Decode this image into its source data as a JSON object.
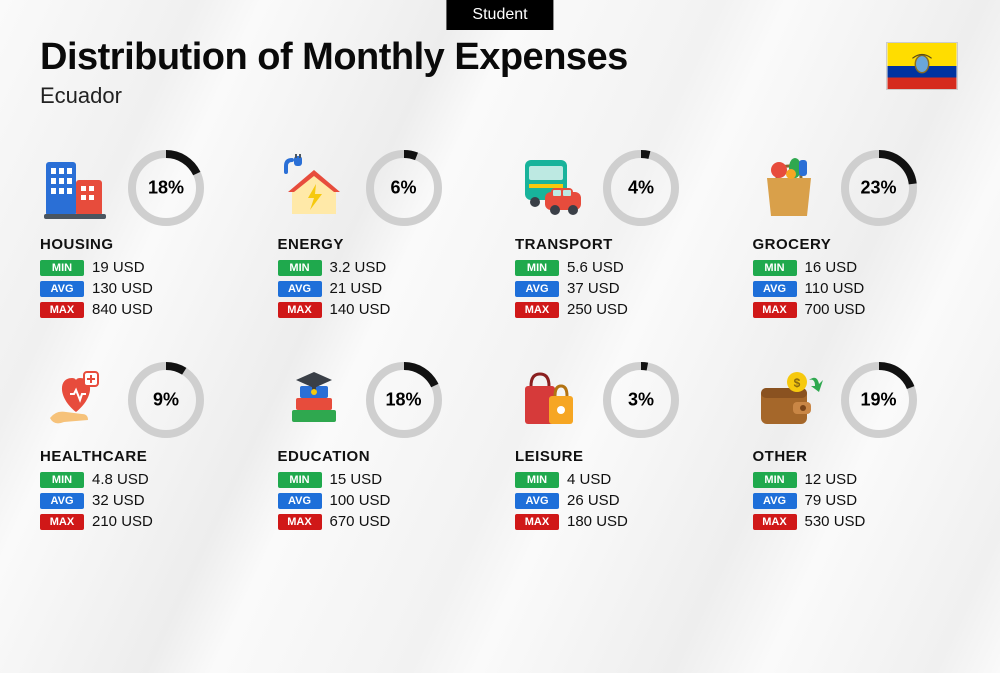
{
  "tag": "Student",
  "title": "Distribution of Monthly Expenses",
  "country": "Ecuador",
  "flag": {
    "stripes": [
      {
        "color": "#ffdd00",
        "height": 24
      },
      {
        "color": "#0033a0",
        "height": 12
      },
      {
        "color": "#d52b1e",
        "height": 12
      }
    ]
  },
  "labels": {
    "min": "MIN",
    "avg": "AVG",
    "max": "MAX"
  },
  "donut": {
    "ring_bg": "#cfcfcf",
    "ring_fg": "#111111",
    "ring_width": 8,
    "radius": 34
  },
  "badge_colors": {
    "min": "#1fa94d",
    "avg": "#1e6fd9",
    "max": "#d01818"
  },
  "categories": [
    {
      "key": "housing",
      "name": "HOUSING",
      "percent": 18,
      "min": "19 USD",
      "avg": "130 USD",
      "max": "840 USD",
      "icon": "buildings"
    },
    {
      "key": "energy",
      "name": "ENERGY",
      "percent": 6,
      "min": "3.2 USD",
      "avg": "21 USD",
      "max": "140 USD",
      "icon": "energy-house"
    },
    {
      "key": "transport",
      "name": "TRANSPORT",
      "percent": 4,
      "min": "5.6 USD",
      "avg": "37 USD",
      "max": "250 USD",
      "icon": "bus-car"
    },
    {
      "key": "grocery",
      "name": "GROCERY",
      "percent": 23,
      "min": "16 USD",
      "avg": "110 USD",
      "max": "700 USD",
      "icon": "grocery-bag"
    },
    {
      "key": "healthcare",
      "name": "HEALTHCARE",
      "percent": 9,
      "min": "4.8 USD",
      "avg": "32 USD",
      "max": "210 USD",
      "icon": "heart-hand"
    },
    {
      "key": "education",
      "name": "EDUCATION",
      "percent": 18,
      "min": "15 USD",
      "avg": "100 USD",
      "max": "670 USD",
      "icon": "books-cap"
    },
    {
      "key": "leisure",
      "name": "LEISURE",
      "percent": 3,
      "min": "4 USD",
      "avg": "26 USD",
      "max": "180 USD",
      "icon": "shopping-bags"
    },
    {
      "key": "other",
      "name": "OTHER",
      "percent": 19,
      "min": "12 USD",
      "avg": "79 USD",
      "max": "530 USD",
      "icon": "wallet-arrow"
    }
  ]
}
